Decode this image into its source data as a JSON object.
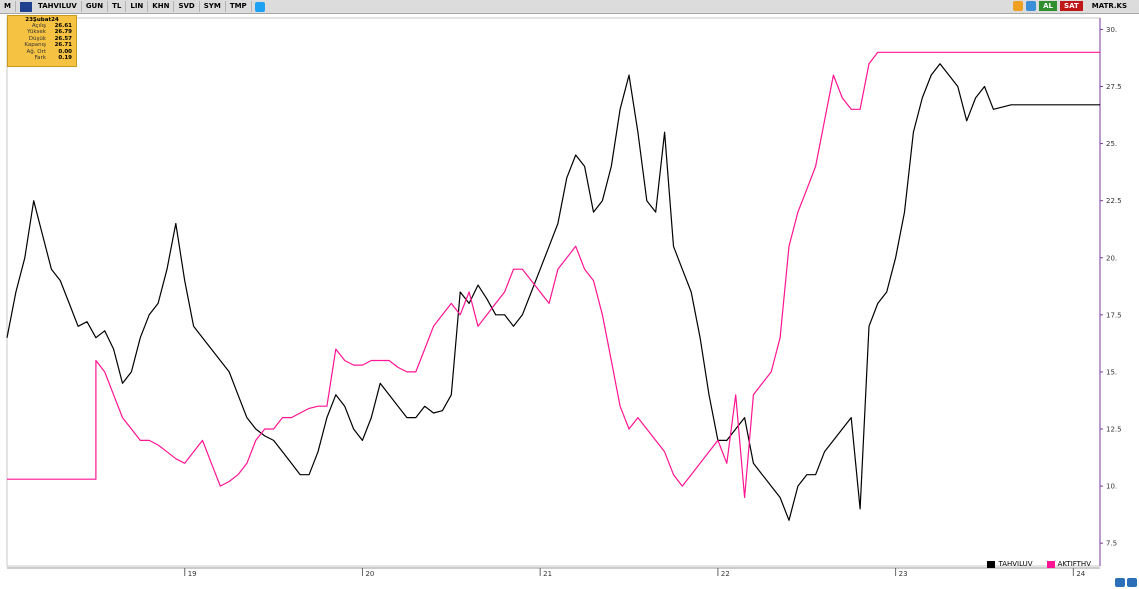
{
  "toolbar": {
    "items": [
      "M",
      "TAHVILUV",
      "GUN",
      "TL",
      "LIN",
      "KHN",
      "SVD",
      "SYM",
      "TMP"
    ],
    "right_buttons": {
      "al": "AL",
      "sat": "SAT",
      "matr": "MATR.KS"
    }
  },
  "info_box": {
    "date": "23Şubat24",
    "rows": [
      {
        "label": "Açılış",
        "value": "26.61"
      },
      {
        "label": "Yüksek",
        "value": "26.79"
      },
      {
        "label": "Düşük",
        "value": "26.57"
      },
      {
        "label": "Kapanış",
        "value": "26.71"
      },
      {
        "label": "Ağ. Ort",
        "value": "0.00"
      },
      {
        "label": "Fark",
        "value": "0.19"
      }
    ]
  },
  "chart_data": {
    "type": "line",
    "title": "",
    "xlabel": "",
    "ylabel": "",
    "x_ticks": [
      "19",
      "20",
      "21",
      "22",
      "23",
      "24"
    ],
    "y_ticks": [
      "7.5",
      "10.",
      "12.5",
      "15.",
      "17.5",
      "20.",
      "22.5",
      "25.",
      "27.5",
      "30."
    ],
    "ylim": [
      6.5,
      30.5
    ],
    "legend_position": "bottom-right",
    "colors": {
      "TAHVILUV": "#000000",
      "AKTIFTHV": "#ff1493"
    },
    "series": [
      {
        "name": "TAHVILUV",
        "x": [
          18.0,
          18.05,
          18.1,
          18.15,
          18.2,
          18.25,
          18.3,
          18.35,
          18.4,
          18.45,
          18.5,
          18.55,
          18.6,
          18.65,
          18.7,
          18.75,
          18.8,
          18.85,
          18.9,
          18.95,
          19.0,
          19.05,
          19.1,
          19.15,
          19.2,
          19.25,
          19.3,
          19.35,
          19.4,
          19.45,
          19.5,
          19.55,
          19.6,
          19.65,
          19.7,
          19.75,
          19.8,
          19.85,
          19.9,
          19.95,
          20.0,
          20.05,
          20.1,
          20.15,
          20.2,
          20.25,
          20.3,
          20.35,
          20.4,
          20.45,
          20.5,
          20.55,
          20.6,
          20.65,
          20.7,
          20.75,
          20.8,
          20.85,
          20.9,
          20.95,
          21.0,
          21.05,
          21.1,
          21.15,
          21.2,
          21.25,
          21.3,
          21.35,
          21.4,
          21.45,
          21.5,
          21.55,
          21.6,
          21.65,
          21.7,
          21.75,
          21.8,
          21.85,
          21.9,
          21.95,
          22.0,
          22.05,
          22.1,
          22.15,
          22.2,
          22.25,
          22.3,
          22.35,
          22.4,
          22.45,
          22.5,
          22.55,
          22.6,
          22.65,
          22.7,
          22.75,
          22.8,
          22.85,
          22.9,
          22.95,
          23.0,
          23.05,
          23.1,
          23.15,
          23.2,
          23.25,
          23.3,
          23.35,
          23.4,
          23.45,
          23.5,
          23.55,
          23.6,
          23.65,
          23.7,
          23.75,
          23.8,
          23.85,
          23.9,
          23.95,
          24.0,
          24.05,
          24.1,
          24.15
        ],
        "values": [
          16.5,
          18.5,
          20.0,
          22.5,
          21.0,
          19.5,
          19.0,
          18.0,
          17.0,
          17.2,
          16.5,
          16.8,
          16.0,
          14.5,
          15.0,
          16.5,
          17.5,
          18.0,
          19.5,
          21.5,
          19.0,
          17.0,
          16.5,
          16.0,
          15.5,
          15.0,
          14.0,
          13.0,
          12.5,
          12.2,
          12.0,
          11.5,
          11.0,
          10.5,
          10.5,
          11.5,
          13.0,
          14.0,
          13.5,
          12.5,
          12.0,
          13.0,
          14.5,
          14.0,
          13.5,
          13.0,
          13.0,
          13.5,
          13.2,
          13.3,
          14.0,
          18.5,
          18.0,
          18.8,
          18.2,
          17.5,
          17.5,
          17.0,
          17.5,
          18.5,
          19.5,
          20.5,
          21.5,
          23.5,
          24.5,
          24.0,
          22.0,
          22.5,
          24.0,
          26.5,
          28.0,
          25.5,
          22.5,
          22.0,
          25.5,
          20.5,
          19.5,
          18.5,
          16.5,
          14.0,
          12.0,
          12.0,
          12.5,
          13.0,
          11.0,
          10.5,
          10.0,
          9.5,
          8.5,
          10.0,
          10.5,
          10.5,
          11.5,
          12.0,
          12.5,
          13.0,
          9.0,
          17.0,
          18.0,
          18.5,
          20.0,
          22.0,
          25.5,
          27.0,
          28.0,
          28.5,
          28.0,
          27.5,
          26.0,
          27.0,
          27.5,
          26.5,
          26.6,
          26.7,
          26.7,
          26.7,
          26.7,
          26.7,
          26.7,
          26.7,
          26.7,
          26.7,
          26.7,
          26.7
        ]
      },
      {
        "name": "AKTIFTHV",
        "x": [
          18.0,
          18.45,
          18.5,
          18.5,
          18.55,
          18.6,
          18.65,
          18.7,
          18.75,
          18.8,
          18.85,
          18.9,
          18.95,
          19.0,
          19.05,
          19.1,
          19.15,
          19.2,
          19.25,
          19.3,
          19.35,
          19.4,
          19.45,
          19.5,
          19.55,
          19.6,
          19.65,
          19.7,
          19.75,
          19.8,
          19.85,
          19.9,
          19.95,
          20.0,
          20.05,
          20.1,
          20.15,
          20.2,
          20.25,
          20.3,
          20.35,
          20.4,
          20.45,
          20.5,
          20.55,
          20.6,
          20.65,
          20.7,
          20.75,
          20.8,
          20.85,
          20.9,
          20.95,
          21.0,
          21.05,
          21.1,
          21.15,
          21.2,
          21.25,
          21.3,
          21.35,
          21.4,
          21.45,
          21.5,
          21.55,
          21.6,
          21.65,
          21.7,
          21.75,
          21.8,
          21.85,
          21.9,
          21.95,
          22.0,
          22.05,
          22.1,
          22.15,
          22.2,
          22.25,
          22.3,
          22.35,
          22.4,
          22.45,
          22.5,
          22.55,
          22.6,
          22.65,
          22.7,
          22.75,
          22.8,
          22.85,
          22.9,
          22.95,
          23.0,
          23.05,
          23.1,
          23.15,
          23.2,
          23.25,
          23.3,
          23.35,
          23.4,
          23.45,
          23.5,
          23.55,
          23.6,
          23.65,
          23.7,
          23.75,
          23.8,
          23.85,
          23.9,
          23.95,
          24.0,
          24.05,
          24.1,
          24.15
        ],
        "values": [
          10.3,
          10.3,
          10.3,
          15.5,
          15.0,
          14.0,
          13.0,
          12.5,
          12.0,
          12.0,
          11.8,
          11.5,
          11.2,
          11.0,
          11.5,
          12.0,
          11.0,
          10.0,
          10.2,
          10.5,
          11.0,
          12.0,
          12.5,
          12.5,
          13.0,
          13.0,
          13.2,
          13.4,
          13.5,
          13.5,
          16.0,
          15.5,
          15.3,
          15.3,
          15.5,
          15.5,
          15.5,
          15.2,
          15.0,
          15.0,
          16.0,
          17.0,
          17.5,
          18.0,
          17.5,
          18.5,
          17.0,
          17.5,
          18.0,
          18.5,
          19.5,
          19.5,
          19.0,
          18.5,
          18.0,
          19.5,
          20.0,
          20.5,
          19.5,
          19.0,
          17.5,
          15.5,
          13.5,
          12.5,
          13.0,
          12.5,
          12.0,
          11.5,
          10.5,
          10.0,
          10.5,
          11.0,
          11.5,
          12.0,
          11.0,
          14.0,
          9.5,
          14.0,
          14.5,
          15.0,
          16.5,
          20.5,
          22.0,
          23.0,
          24.0,
          26.0,
          28.0,
          27.0,
          26.5,
          26.5,
          28.5,
          29.0,
          29.0,
          29.0,
          29.0,
          29.0,
          29.0,
          29.0,
          29.0,
          29.0,
          29.0,
          29.0,
          29.0,
          29.0,
          29.0,
          29.0,
          29.0,
          29.0,
          29.0,
          29.0,
          29.0,
          29.0,
          29.0,
          29.0,
          29.0,
          29.0,
          29.0
        ]
      }
    ]
  }
}
